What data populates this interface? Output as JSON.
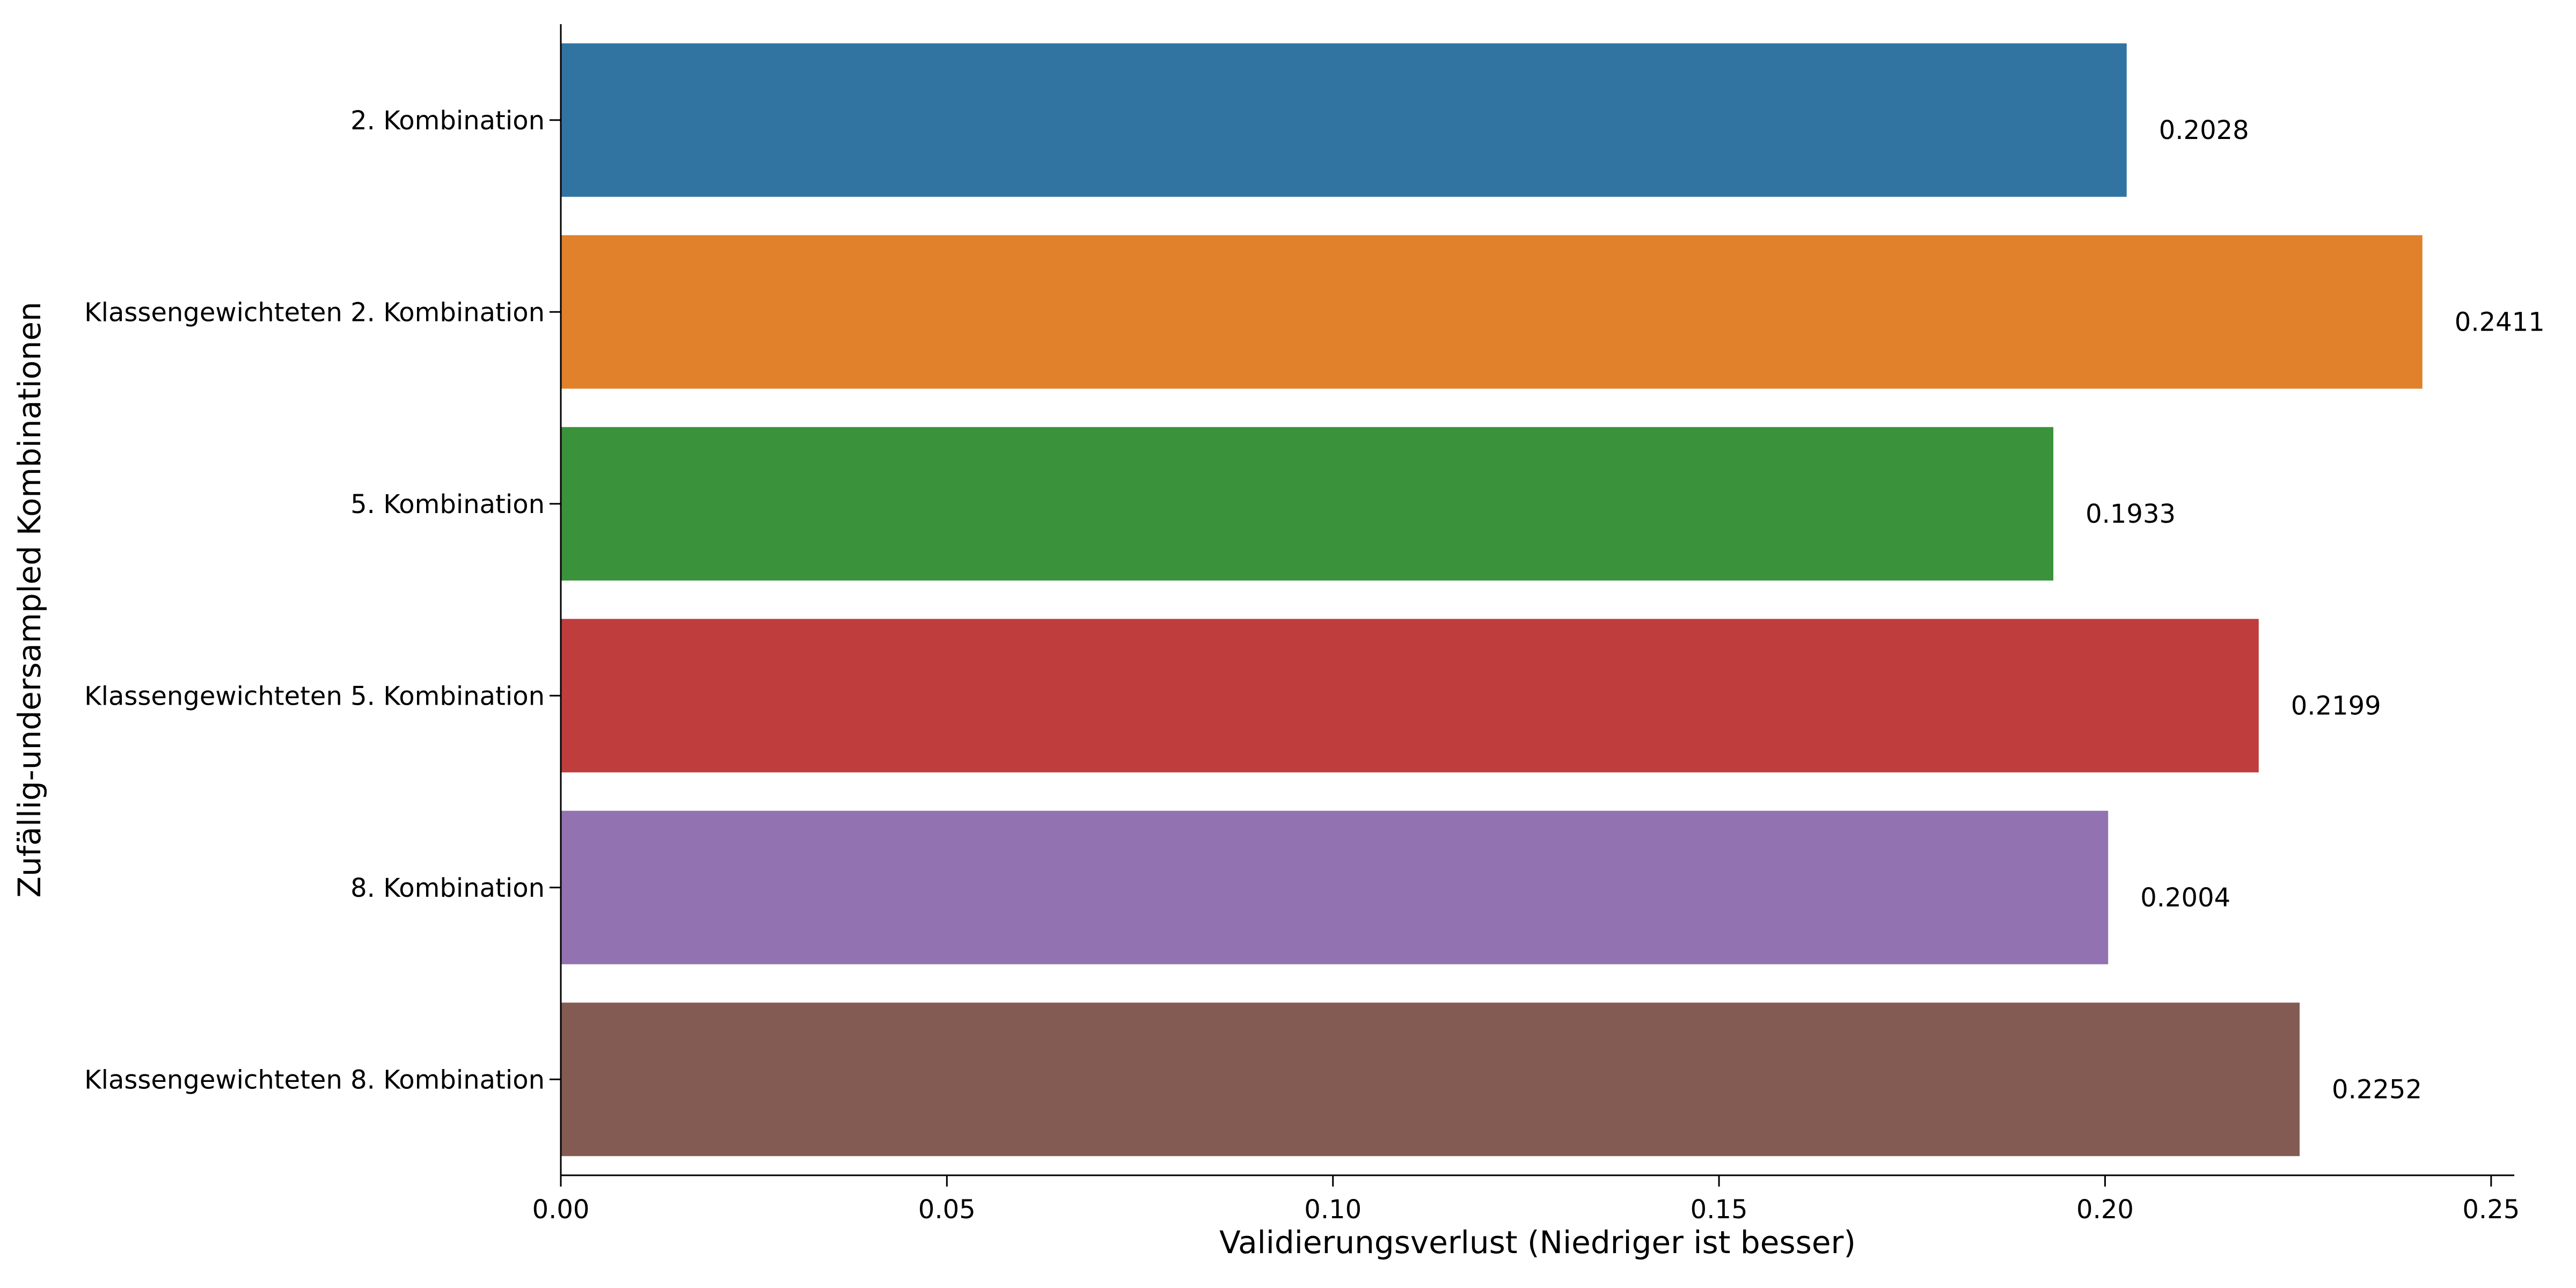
{
  "chart_data": {
    "type": "bar",
    "orientation": "horizontal",
    "title": "",
    "xlabel": "Validierungsverlust (Niedriger ist besser)",
    "ylabel": "Zufällig-undersampled Kombinationen",
    "categories": [
      "2. Kombination",
      "Klassengewichteten 2. Kombination",
      "5. Kombination",
      "Klassengewichteten 5. Kombination",
      "8. Kombination",
      "Klassengewichteten 8. Kombination"
    ],
    "values": [
      0.2028,
      0.2411,
      0.1933,
      0.2199,
      0.2004,
      0.2252
    ],
    "value_labels": [
      "0.2028",
      "0.2411",
      "0.1933",
      "0.2199",
      "0.2004",
      "0.2252"
    ],
    "colors": [
      "#3274a1",
      "#e1812c",
      "#3a923a",
      "#c03d3e",
      "#9372b2",
      "#845b53"
    ],
    "xlim": [
      0,
      0.253
    ],
    "xticks": [
      0.0,
      0.05,
      0.1,
      0.15,
      0.2,
      0.25
    ],
    "xtick_labels": [
      "0.00",
      "0.05",
      "0.10",
      "0.15",
      "0.20",
      "0.25"
    ],
    "grid": false,
    "legend": "none"
  }
}
